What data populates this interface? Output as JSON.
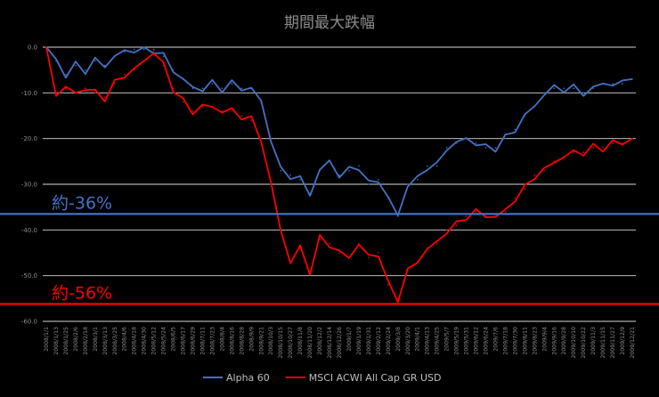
{
  "chart_data": {
    "type": "line",
    "title": "期間最大跌幅",
    "ylim": [
      -60,
      0
    ],
    "yticks": [
      "0.0",
      "-10.0",
      "-20.0",
      "-30.0",
      "-40.0",
      "-50.0",
      "-60.0"
    ],
    "grid": true,
    "legend_position": "bottom",
    "x_tick_labels": [
      "2008/1/1",
      "2008/1/13",
      "2008/1/25",
      "2008/2/6",
      "2008/2/18",
      "2008/3/1",
      "2008/3/13",
      "2008/3/25",
      "2008/4/6",
      "2008/4/18",
      "2008/4/30",
      "2008/5/12",
      "2008/5/24",
      "2008/6/5",
      "2008/6/17",
      "2008/6/29",
      "2008/7/11",
      "2008/7/23",
      "2008/8/4",
      "2008/8/16",
      "2008/8/28",
      "2008/9/9",
      "2008/9/21",
      "2008/10/3",
      "2008/10/15",
      "2008/10/27",
      "2008/11/8",
      "2008/11/20",
      "2008/12/2",
      "2008/12/14",
      "2008/12/26",
      "2009/1/7",
      "2009/1/19",
      "2009/1/31",
      "2009/2/12",
      "2009/2/24",
      "2009/3/8",
      "2009/3/20",
      "2009/4/1",
      "2009/4/13",
      "2009/4/25",
      "2009/5/7",
      "2009/5/19",
      "2009/5/31",
      "2009/6/12",
      "2009/6/24",
      "2009/7/6",
      "2009/7/18",
      "2009/7/30",
      "2009/8/11",
      "2009/8/23",
      "2009/9/4",
      "2009/9/16",
      "2009/9/28",
      "2009/10/10",
      "2009/10/22",
      "2009/11/3",
      "2009/11/15",
      "2009/11/27",
      "2009/12/9",
      "2009/12/21"
    ],
    "x": [
      "2008/1/1",
      "2008/1/13",
      "2008/1/25",
      "2008/2/6",
      "2008/2/18",
      "2008/3/1",
      "2008/3/13",
      "2008/3/25",
      "2008/4/6",
      "2008/4/18",
      "2008/4/30",
      "2008/5/12",
      "2008/5/24",
      "2008/6/5",
      "2008/6/17",
      "2008/6/29",
      "2008/7/11",
      "2008/7/23",
      "2008/8/4",
      "2008/8/16",
      "2008/8/28",
      "2008/9/9",
      "2008/9/21",
      "2008/10/3",
      "2008/10/15",
      "2008/10/27",
      "2008/11/8",
      "2008/11/20",
      "2008/12/2",
      "2008/12/14",
      "2008/12/26",
      "2009/1/7",
      "2009/1/19",
      "2009/1/31",
      "2009/2/12",
      "2009/2/24",
      "2009/3/8",
      "2009/3/20",
      "2009/4/1",
      "2009/4/13",
      "2009/4/25",
      "2009/5/7",
      "2009/5/19",
      "2009/5/31",
      "2009/6/12",
      "2009/6/24",
      "2009/7/6",
      "2009/7/18",
      "2009/7/30",
      "2009/8/11",
      "2009/8/23",
      "2009/9/4",
      "2009/9/16",
      "2009/9/28",
      "2009/10/10",
      "2009/10/22",
      "2009/11/3",
      "2009/11/15",
      "2009/11/27",
      "2009/12/9",
      "2009/12/21"
    ],
    "series": [
      {
        "name": "Alpha 60",
        "color": "#4472c4",
        "values": [
          0,
          -3,
          -6,
          -4,
          -5,
          -3,
          -4,
          -2,
          -1,
          -0.5,
          -0.5,
          -0.5,
          -2,
          -5,
          -7,
          -9,
          -9,
          -8,
          -9,
          -8,
          -9,
          -9,
          -12,
          -20,
          -27,
          -28,
          -29,
          -32,
          -27,
          -25,
          -28,
          -27,
          -26,
          -30,
          -29,
          -33,
          -37,
          -30,
          -29,
          -26,
          -26,
          -22,
          -21,
          -20,
          -21,
          -22,
          -22,
          -20,
          -18,
          -15,
          -13,
          -10,
          -9,
          -9,
          -9,
          -10,
          -9,
          -8,
          -8,
          -8,
          -7
        ]
      },
      {
        "name": "MSCI ACWI All Cap GR USD",
        "color": "#ff0000",
        "values": [
          0,
          -10,
          -9,
          -10,
          -9,
          -10,
          -11,
          -8,
          -6,
          -5,
          -3,
          -1,
          -4,
          -9,
          -12,
          -14,
          -13,
          -13,
          -14,
          -14,
          -15,
          -16,
          -20,
          -30,
          -40,
          -47,
          -44,
          -49,
          -42,
          -43,
          -45,
          -46,
          -43,
          -46,
          -45,
          -52,
          -55,
          -49,
          -47,
          -44,
          -43,
          -40,
          -39,
          -37,
          -36,
          -37,
          -37,
          -36,
          -33,
          -31,
          -28,
          -27,
          -25,
          -24,
          -23,
          -23,
          -22,
          -22,
          -21,
          -21,
          -20
        ]
      }
    ],
    "annotations": [
      {
        "text": "約-36%",
        "y": -36.5,
        "color": "#4472c4"
      },
      {
        "text": "約-56%",
        "y": -56.2,
        "color": "#ff0000"
      }
    ]
  }
}
